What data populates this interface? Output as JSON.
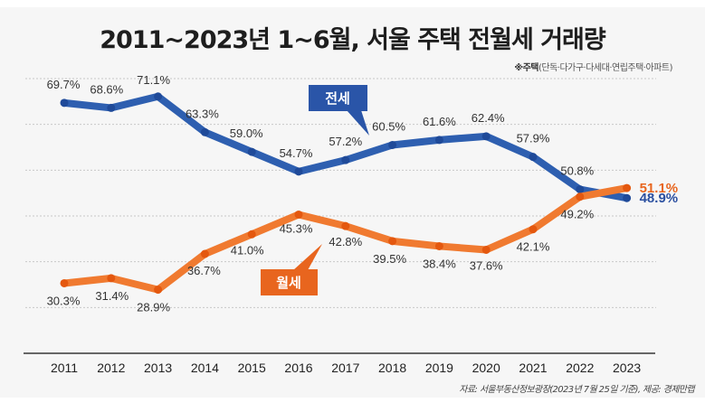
{
  "title": "2011~2023년 1~6월, 서울 주택 전월세 거래량",
  "note": {
    "prefix": "※주택",
    "detail": "(단독·다가구·다세대·연립주택·아파트)"
  },
  "source": "자료: 서울부동산정보광장(2023년 7월 25일 기준), 제공: 경제만랩",
  "chart_data": {
    "type": "line",
    "title": "2011~2023년 1~6월, 서울 주택 전월세 거래량",
    "xlabel": "",
    "ylabel": "",
    "x": [
      "2011",
      "2012",
      "2013",
      "2014",
      "2015",
      "2016",
      "2017",
      "2018",
      "2019",
      "2020",
      "2021",
      "2022",
      "2023"
    ],
    "ylim": [
      15,
      75
    ],
    "grid": true,
    "unit": "%",
    "series": [
      {
        "name": "전세",
        "color": "#2e5fb0",
        "values": [
          69.7,
          68.6,
          71.1,
          63.3,
          59.0,
          54.7,
          57.2,
          60.5,
          61.6,
          62.4,
          57.9,
          50.8,
          48.9
        ],
        "labels": [
          "69.7%",
          "68.6%",
          "71.1%",
          "63.3%",
          "59.0%",
          "54.7%",
          "57.2%",
          "60.5%",
          "61.6%",
          "62.4%",
          "57.9%",
          "50.8%",
          "48.9%"
        ]
      },
      {
        "name": "월세",
        "color": "#f07a30",
        "values": [
          30.3,
          31.4,
          28.9,
          36.7,
          41.0,
          45.3,
          42.8,
          39.5,
          38.4,
          37.6,
          42.1,
          49.2,
          51.1
        ],
        "labels": [
          "30.3%",
          "31.4%",
          "28.9%",
          "36.7%",
          "41.0%",
          "45.3%",
          "42.8%",
          "39.5%",
          "38.4%",
          "37.6%",
          "42.1%",
          "49.2%",
          "51.1%"
        ]
      }
    ],
    "callouts": [
      {
        "series": "전세",
        "text": "전세",
        "color": "#2a55a8"
      },
      {
        "series": "월세",
        "text": "월세",
        "color": "#e8651e"
      }
    ],
    "end_label_colors": {
      "전세": "#2a4fa0",
      "월세": "#e8651e"
    }
  }
}
